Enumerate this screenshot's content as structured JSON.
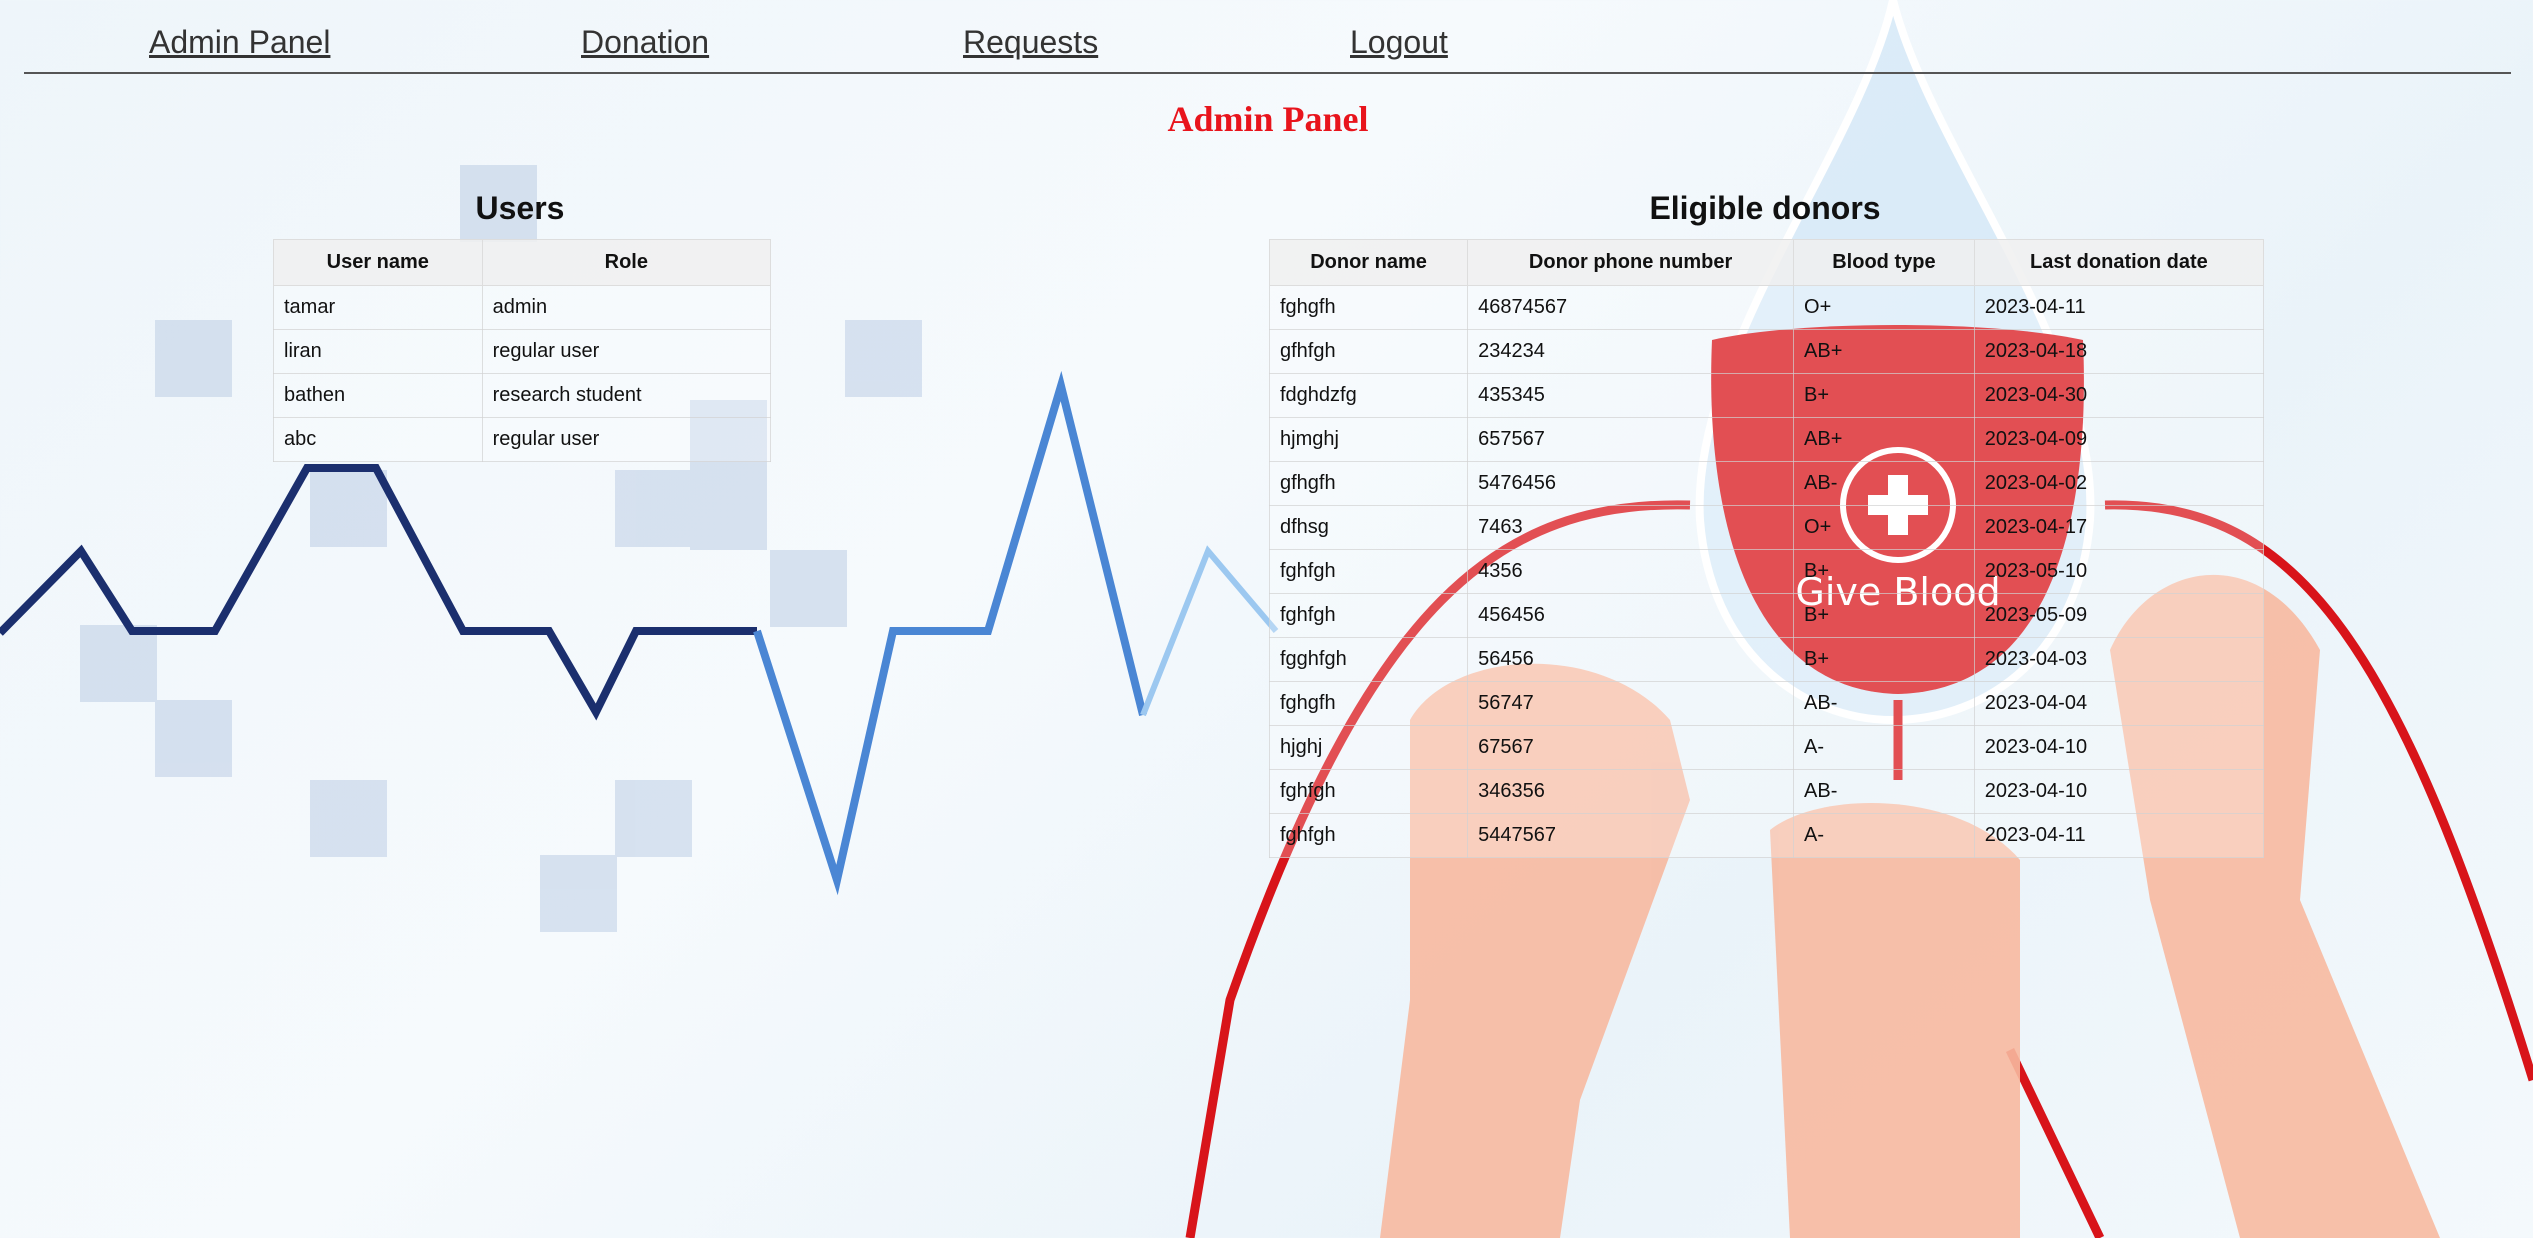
{
  "nav": [
    "Admin Panel",
    "Donation",
    "Requests",
    "Logout"
  ],
  "title": "Admin Panel",
  "illustration_text": "Give Blood",
  "users": {
    "heading": "Users",
    "columns": [
      "User name",
      "Role"
    ],
    "rows": [
      [
        "tamar",
        "admin"
      ],
      [
        "liran",
        "regular user"
      ],
      [
        "bathen",
        "research student"
      ],
      [
        "abc",
        "regular user"
      ]
    ]
  },
  "donors": {
    "heading": "Eligible donors",
    "columns": [
      "Donor name",
      "Donor phone number",
      "Blood type",
      "Last donation date"
    ],
    "rows": [
      [
        "fghgfh",
        "46874567",
        "O+",
        "2023-04-11"
      ],
      [
        "gfhfgh",
        "234234",
        "AB+",
        "2023-04-18"
      ],
      [
        "fdghdzfg",
        "435345",
        "B+",
        "2023-04-30"
      ],
      [
        "hjmghj",
        "657567",
        "AB+",
        "2023-04-09"
      ],
      [
        "gfhgfh",
        "5476456",
        "AB-",
        "2023-04-02"
      ],
      [
        "dfhsg",
        "7463",
        "O+",
        "2023-04-17"
      ],
      [
        "fghfgh",
        "4356",
        "B+",
        "2023-05-10"
      ],
      [
        "fghfgh",
        "456456",
        "B+",
        "2023-05-09"
      ],
      [
        "fgghfgh",
        "56456",
        "B+",
        "2023-04-03"
      ],
      [
        "fghgfh",
        "56747",
        "AB-",
        "2023-04-04"
      ],
      [
        "hjghj",
        "67567",
        "A-",
        "2023-04-10"
      ],
      [
        "fghfgh",
        "346356",
        "AB-",
        "2023-04-10"
      ],
      [
        "fghfgh",
        "5447567",
        "A-",
        "2023-04-11"
      ]
    ]
  }
}
